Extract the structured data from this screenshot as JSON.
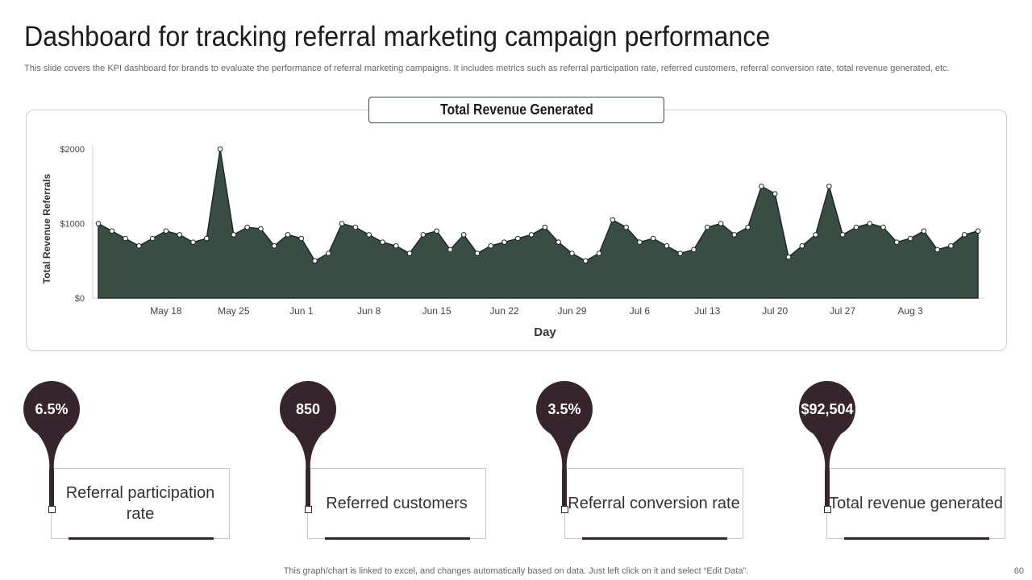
{
  "header": {
    "title": "Dashboard for tracking referral marketing campaign performance",
    "subtitle": "This slide covers the KPI dashboard for brands to evaluate the performance of referral marketing campaigns. It includes metrics such as referral participation rate, referred customers, referral conversion rate, total revenue generated, etc."
  },
  "chart_data": {
    "type": "area",
    "title": "Total Revenue Generated",
    "xlabel": "Day",
    "ylabel": "Total Revenue Referrals",
    "ylim": [
      0,
      2000
    ],
    "y_ticks": [
      {
        "value": 0,
        "label": "$0"
      },
      {
        "value": 1000,
        "label": "$1000"
      },
      {
        "value": 2000,
        "label": "$2000"
      }
    ],
    "x_ticks": [
      {
        "index": 5,
        "label": "May 18"
      },
      {
        "index": 10,
        "label": "May 25"
      },
      {
        "index": 15,
        "label": "Jun 1"
      },
      {
        "index": 20,
        "label": "Jun 8"
      },
      {
        "index": 25,
        "label": "Jun 15"
      },
      {
        "index": 30,
        "label": "Jun 22"
      },
      {
        "index": 35,
        "label": "Jun 29"
      },
      {
        "index": 40,
        "label": "Jul 6"
      },
      {
        "index": 45,
        "label": "Jul 13"
      },
      {
        "index": 50,
        "label": "Jul 20"
      },
      {
        "index": 55,
        "label": "Jul 27"
      },
      {
        "index": 60,
        "label": "Aug 3"
      }
    ],
    "series": [
      {
        "name": "Total Revenue",
        "color": "#3a4d44",
        "values": [
          1000,
          900,
          800,
          700,
          800,
          900,
          850,
          750,
          800,
          2000,
          850,
          950,
          930,
          700,
          850,
          800,
          500,
          600,
          1000,
          950,
          850,
          750,
          700,
          600,
          850,
          900,
          650,
          850,
          600,
          700,
          750,
          800,
          850,
          950,
          750,
          600,
          500,
          600,
          1050,
          950,
          750,
          800,
          700,
          600,
          650,
          950,
          1000,
          850,
          950,
          1500,
          1400,
          550,
          700,
          850,
          1500,
          850,
          950,
          1000,
          950,
          750,
          800,
          900,
          650,
          700,
          850,
          900
        ]
      }
    ]
  },
  "kpis": [
    {
      "value": "6.5%",
      "label": "Referral participation rate"
    },
    {
      "value": "850",
      "label": "Referred customers"
    },
    {
      "value": "3.5%",
      "label": "Referral conversion rate"
    },
    {
      "value": "$92,504",
      "label": "Total revenue generated"
    }
  ],
  "footer": {
    "note": "This graph/chart is linked to excel,  and changes automatically based on data. Just left click on it and select “Edit Data”.",
    "page_number": "60"
  },
  "colors": {
    "area_fill": "#3a4d44",
    "kpi_dark": "#36252d"
  }
}
